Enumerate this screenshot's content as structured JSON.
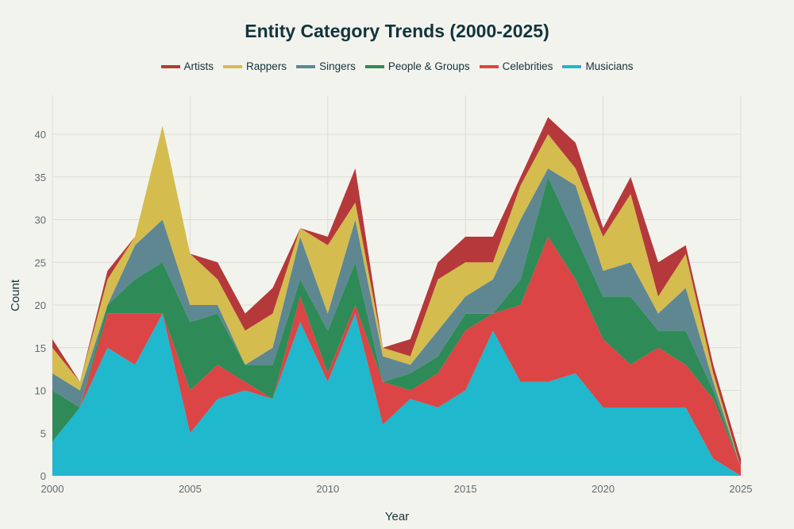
{
  "chart_data": {
    "type": "area",
    "stacked": true,
    "title": "Entity Category Trends (2000-2025)",
    "xlabel": "Year",
    "ylabel": "Count",
    "xlim": [
      2000,
      2025
    ],
    "ylim": [
      0,
      44
    ],
    "grid": true,
    "legend_placement": "top",
    "x": [
      2000,
      2001,
      2002,
      2003,
      2004,
      2005,
      2006,
      2007,
      2008,
      2009,
      2010,
      2011,
      2012,
      2013,
      2014,
      2015,
      2016,
      2017,
      2018,
      2019,
      2020,
      2021,
      2022,
      2023,
      2024,
      2025
    ],
    "x_ticks": [
      "2000",
      "2005",
      "2010",
      "2015",
      "2020",
      "2025"
    ],
    "x_tick_values": [
      2000,
      2005,
      2010,
      2015,
      2020,
      2025
    ],
    "y_ticks": [
      "0",
      "5",
      "10",
      "15",
      "20",
      "25",
      "30",
      "35",
      "40"
    ],
    "y_tick_values": [
      0,
      5,
      10,
      15,
      20,
      25,
      30,
      35,
      40
    ],
    "series": [
      {
        "name": "Musicians",
        "color": "#1FB8CD",
        "values": [
          4,
          8,
          15,
          13,
          19,
          5,
          9,
          10,
          9,
          18,
          11,
          19,
          6,
          9,
          8,
          10,
          17,
          11,
          11,
          12,
          8,
          8,
          8,
          8,
          2,
          0
        ]
      },
      {
        "name": "Celebrities",
        "color": "#DB4545",
        "values": [
          0,
          0,
          4,
          6,
          0,
          5,
          4,
          1,
          0,
          3,
          1,
          1,
          5,
          1,
          4,
          7,
          2,
          9,
          17,
          11,
          8,
          5,
          7,
          5,
          7,
          1
        ]
      },
      {
        "name": "People & Groups",
        "color": "#2E8B57",
        "values": [
          6,
          0,
          1,
          4,
          6,
          8,
          6,
          2,
          4,
          2,
          5,
          5,
          0,
          2,
          2,
          2,
          0,
          3,
          7,
          5,
          5,
          8,
          2,
          4,
          1,
          0
        ]
      },
      {
        "name": "Singers",
        "color": "#5E8792",
        "values": [
          2,
          2,
          0,
          4,
          5,
          2,
          1,
          0,
          2,
          5,
          2,
          5,
          3,
          1,
          3,
          2,
          4,
          7,
          1,
          6,
          3,
          4,
          2,
          5,
          1,
          0
        ]
      },
      {
        "name": "Rappers",
        "color": "#D4BC4F",
        "values": [
          3,
          1,
          3,
          1,
          11,
          6,
          3,
          4,
          4,
          1,
          8,
          2,
          1,
          1,
          6,
          4,
          2,
          4,
          4,
          2,
          4,
          8,
          2,
          4,
          1,
          0
        ]
      },
      {
        "name": "Artists",
        "color": "#B5393A",
        "values": [
          1,
          0,
          1,
          0,
          0,
          0,
          2,
          2,
          3,
          0,
          1,
          4,
          0,
          2,
          2,
          3,
          3,
          1,
          2,
          3,
          1,
          2,
          4,
          1,
          1,
          1
        ]
      }
    ],
    "legend_order": [
      "Artists",
      "Rappers",
      "Singers",
      "People & Groups",
      "Celebrities",
      "Musicians"
    ]
  }
}
